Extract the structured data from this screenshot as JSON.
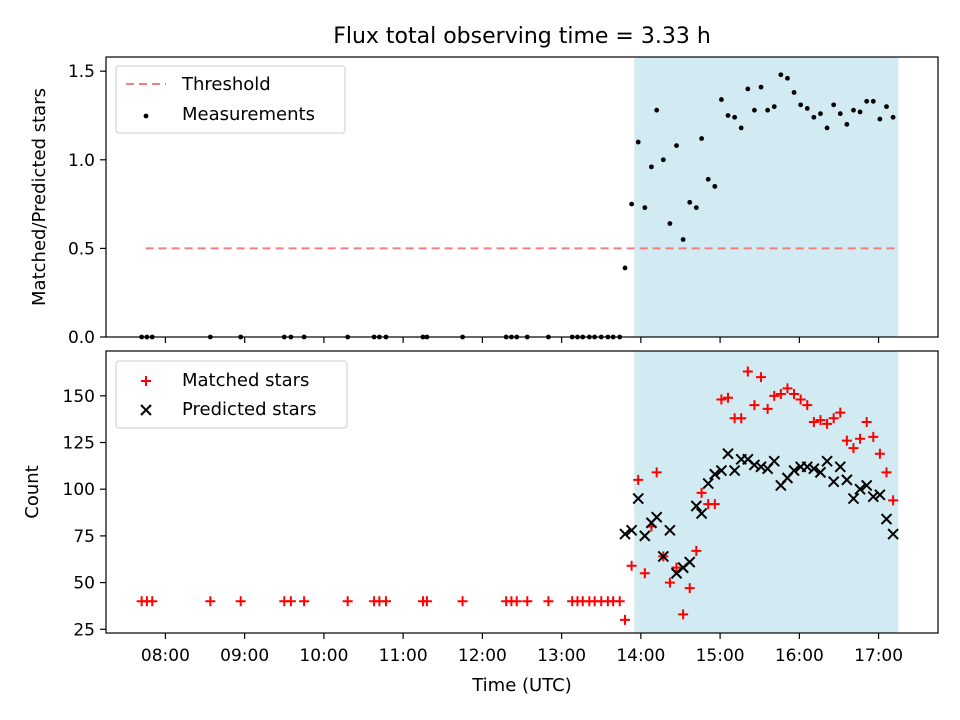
{
  "chart_data": [
    {
      "type": "scatter",
      "title": "Flux total observing time = 3.33 h",
      "xlabel": "",
      "ylabel": "Matched/Predicted stars",
      "xlim": [
        "07:15",
        "17:45"
      ],
      "ylim": [
        0,
        1.58
      ],
      "yticks": [
        "0.0",
        "0.5",
        "1.0",
        "1.5"
      ],
      "highlight_span": [
        "13:55",
        "17:15"
      ],
      "highlight_color": "#add8e6",
      "legend_loc": "upper left",
      "threshold": {
        "name": "Threshold",
        "y": 0.5,
        "x_start": "07:45",
        "x_end": "17:15",
        "color": "#f08080"
      },
      "series": [
        {
          "name": "Measurements",
          "marker": "dot",
          "color": "#000000",
          "points": [
            [
              "07:42",
              0
            ],
            [
              "07:46",
              0
            ],
            [
              "07:50",
              0
            ],
            [
              "08:34",
              0
            ],
            [
              "08:57",
              0
            ],
            [
              "09:30",
              0
            ],
            [
              "09:35",
              0
            ],
            [
              "09:45",
              0
            ],
            [
              "10:18",
              0
            ],
            [
              "10:38",
              0
            ],
            [
              "10:42",
              0
            ],
            [
              "10:47",
              0
            ],
            [
              "11:15",
              0
            ],
            [
              "11:18",
              0
            ],
            [
              "11:45",
              0
            ],
            [
              "12:18",
              0
            ],
            [
              "12:22",
              0
            ],
            [
              "12:26",
              0
            ],
            [
              "12:34",
              0
            ],
            [
              "12:50",
              0
            ],
            [
              "13:08",
              0
            ],
            [
              "13:12",
              0
            ],
            [
              "13:16",
              0
            ],
            [
              "13:21",
              0
            ],
            [
              "13:25",
              0
            ],
            [
              "13:30",
              0
            ],
            [
              "13:35",
              0
            ],
            [
              "13:39",
              0
            ],
            [
              "13:44",
              0
            ],
            [
              "13:48",
              0.39
            ],
            [
              "13:53",
              0.75
            ],
            [
              "13:58",
              1.1
            ],
            [
              "14:03",
              0.73
            ],
            [
              "14:08",
              0.96
            ],
            [
              "14:12",
              1.28
            ],
            [
              "14:17",
              1.0
            ],
            [
              "14:22",
              0.64
            ],
            [
              "14:27",
              1.08
            ],
            [
              "14:32",
              0.55
            ],
            [
              "14:37",
              0.76
            ],
            [
              "14:42",
              0.73
            ],
            [
              "14:46",
              1.12
            ],
            [
              "14:51",
              0.89
            ],
            [
              "14:56",
              0.85
            ],
            [
              "15:01",
              1.34
            ],
            [
              "15:06",
              1.25
            ],
            [
              "15:11",
              1.24
            ],
            [
              "15:16",
              1.18
            ],
            [
              "15:21",
              1.4
            ],
            [
              "15:26",
              1.28
            ],
            [
              "15:31",
              1.41
            ],
            [
              "15:36",
              1.28
            ],
            [
              "15:41",
              1.3
            ],
            [
              "15:46",
              1.48
            ],
            [
              "15:51",
              1.46
            ],
            [
              "15:56",
              1.38
            ],
            [
              "16:01",
              1.31
            ],
            [
              "16:06",
              1.29
            ],
            [
              "16:11",
              1.24
            ],
            [
              "16:16",
              1.26
            ],
            [
              "16:21",
              1.18
            ],
            [
              "16:26",
              1.31
            ],
            [
              "16:31",
              1.26
            ],
            [
              "16:36",
              1.2
            ],
            [
              "16:41",
              1.28
            ],
            [
              "16:46",
              1.27
            ],
            [
              "16:51",
              1.33
            ],
            [
              "16:56",
              1.33
            ],
            [
              "17:01",
              1.23
            ],
            [
              "17:06",
              1.3
            ],
            [
              "17:11",
              1.24
            ]
          ]
        }
      ]
    },
    {
      "type": "scatter",
      "title": "",
      "xlabel": "Time (UTC)",
      "ylabel": "Count",
      "xlim": [
        "07:15",
        "17:45"
      ],
      "ylim": [
        23,
        174
      ],
      "yticks": [
        "25",
        "50",
        "75",
        "100",
        "125",
        "150"
      ],
      "xticks": [
        "08:00",
        "09:00",
        "10:00",
        "11:00",
        "12:00",
        "13:00",
        "14:00",
        "15:00",
        "16:00",
        "17:00"
      ],
      "highlight_span": [
        "13:55",
        "17:15"
      ],
      "highlight_color": "#add8e6",
      "legend_loc": "upper left",
      "series": [
        {
          "name": "Matched stars",
          "marker": "plus",
          "color": "#ff0000",
          "points": [
            [
              "07:42",
              40
            ],
            [
              "07:46",
              40
            ],
            [
              "07:50",
              40
            ],
            [
              "08:34",
              40
            ],
            [
              "08:57",
              40
            ],
            [
              "09:30",
              40
            ],
            [
              "09:35",
              40
            ],
            [
              "09:45",
              40
            ],
            [
              "10:18",
              40
            ],
            [
              "10:38",
              40
            ],
            [
              "10:42",
              40
            ],
            [
              "10:47",
              40
            ],
            [
              "11:15",
              40
            ],
            [
              "11:18",
              40
            ],
            [
              "11:45",
              40
            ],
            [
              "12:18",
              40
            ],
            [
              "12:22",
              40
            ],
            [
              "12:26",
              40
            ],
            [
              "12:34",
              40
            ],
            [
              "12:50",
              40
            ],
            [
              "13:08",
              40
            ],
            [
              "13:12",
              40
            ],
            [
              "13:16",
              40
            ],
            [
              "13:21",
              40
            ],
            [
              "13:25",
              40
            ],
            [
              "13:30",
              40
            ],
            [
              "13:35",
              40
            ],
            [
              "13:39",
              40
            ],
            [
              "13:44",
              40
            ],
            [
              "13:48",
              30
            ],
            [
              "13:53",
              59
            ],
            [
              "13:58",
              105
            ],
            [
              "14:03",
              55
            ],
            [
              "14:08",
              80
            ],
            [
              "14:12",
              109
            ],
            [
              "14:17",
              64
            ],
            [
              "14:22",
              50
            ],
            [
              "14:27",
              58
            ],
            [
              "14:32",
              33
            ],
            [
              "14:37",
              47
            ],
            [
              "14:42",
              67
            ],
            [
              "14:46",
              98
            ],
            [
              "14:51",
              92
            ],
            [
              "14:56",
              92
            ],
            [
              "15:01",
              148
            ],
            [
              "15:06",
              149
            ],
            [
              "15:11",
              138
            ],
            [
              "15:16",
              138
            ],
            [
              "15:21",
              163
            ],
            [
              "15:26",
              145
            ],
            [
              "15:31",
              160
            ],
            [
              "15:36",
              143
            ],
            [
              "15:41",
              150
            ],
            [
              "15:46",
              151
            ],
            [
              "15:51",
              154
            ],
            [
              "15:56",
              151
            ],
            [
              "16:01",
              148
            ],
            [
              "16:06",
              145
            ],
            [
              "16:11",
              136
            ],
            [
              "16:16",
              137
            ],
            [
              "16:21",
              135
            ],
            [
              "16:26",
              138
            ],
            [
              "16:31",
              141
            ],
            [
              "16:36",
              126
            ],
            [
              "16:41",
              122
            ],
            [
              "16:46",
              127
            ],
            [
              "16:51",
              136
            ],
            [
              "16:56",
              128
            ],
            [
              "17:01",
              119
            ],
            [
              "17:06",
              109
            ],
            [
              "17:11",
              94
            ]
          ]
        },
        {
          "name": "Predicted stars",
          "marker": "x",
          "color": "#000000",
          "points": [
            [
              "13:48",
              76
            ],
            [
              "13:53",
              78
            ],
            [
              "13:58",
              95
            ],
            [
              "14:03",
              75
            ],
            [
              "14:08",
              82
            ],
            [
              "14:12",
              85
            ],
            [
              "14:17",
              64
            ],
            [
              "14:22",
              78
            ],
            [
              "14:27",
              55
            ],
            [
              "14:32",
              58
            ],
            [
              "14:37",
              61
            ],
            [
              "14:42",
              91
            ],
            [
              "14:46",
              87
            ],
            [
              "14:51",
              103
            ],
            [
              "14:56",
              108
            ],
            [
              "15:01",
              110
            ],
            [
              "15:06",
              119
            ],
            [
              "15:11",
              110
            ],
            [
              "15:16",
              116
            ],
            [
              "15:21",
              116
            ],
            [
              "15:26",
              113
            ],
            [
              "15:31",
              112
            ],
            [
              "15:36",
              111
            ],
            [
              "15:41",
              115
            ],
            [
              "15:46",
              102
            ],
            [
              "15:51",
              106
            ],
            [
              "15:56",
              110
            ],
            [
              "16:01",
              112
            ],
            [
              "16:06",
              112
            ],
            [
              "16:11",
              111
            ],
            [
              "16:16",
              109
            ],
            [
              "16:21",
              115
            ],
            [
              "16:26",
              104
            ],
            [
              "16:31",
              112
            ],
            [
              "16:36",
              105
            ],
            [
              "16:41",
              95
            ],
            [
              "16:46",
              100
            ],
            [
              "16:51",
              102
            ],
            [
              "16:56",
              96
            ],
            [
              "17:01",
              97
            ],
            [
              "17:06",
              84
            ],
            [
              "17:11",
              76
            ]
          ]
        }
      ]
    }
  ]
}
